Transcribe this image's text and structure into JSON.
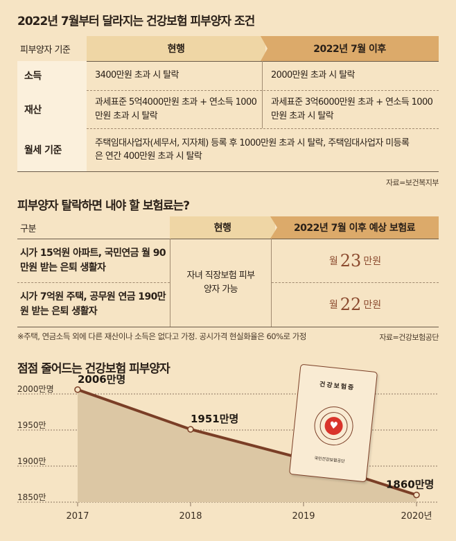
{
  "section1": {
    "title": "2022년 7월부터 달라지는 건강보험 피부양자 조건",
    "col_label": "피부양자 기준",
    "col_current": "현행",
    "col_after": "2022년 7월 이후",
    "rows": [
      {
        "label": "소득",
        "current": "3400만원 초과 시 탈락",
        "after": "2000만원 초과 시 탈락"
      },
      {
        "label": "재산",
        "current": "과세표준 5억4000만원 초과 + 연소득 1000만원 초과 시 탈락",
        "after": "과세표준 3억6000만원 초과 + 연소득 1000만원 초과 시 탈락"
      },
      {
        "label": "월세 기준",
        "merged": "주택임대사업자(세무서, 지자체) 등록 후 1000만원 초과 시 탈락, 주택임대사업자 미등록은 연간 400만원 초과 시 탈락"
      }
    ],
    "source": "자료=보건복지부"
  },
  "section2": {
    "title": "피부양자 탈락하면 내야 할 보험료는?",
    "col_label": "구분",
    "col_current": "현행",
    "col_after": "2022년 7월 이후 예상 보험료",
    "rows": [
      {
        "label": "시가 15억원 아파트, 국민연금 월 90만원 받는 은퇴 생활자",
        "prefix": "월",
        "amount": "23",
        "unit": "만원"
      },
      {
        "label": "시가 7억원 주택, 공무원 연금 190만원 받는 은퇴 생활자",
        "prefix": "월",
        "amount": "22",
        "unit": "만원"
      }
    ],
    "current_merged": "자녀 직장보험 피부양자 가능",
    "footnote": "※주택, 연금소득 외에 다른 재산이나 소득은 없다고 가정. 공시가격 현실화율은 60%로 가정",
    "source": "자료=건강보험공단"
  },
  "chart_data": {
    "type": "area",
    "title": "점점 줄어드는 건강보험 피부양자",
    "categories": [
      "2017",
      "2018",
      "2019",
      "2020년"
    ],
    "values": [
      2006,
      1951,
      1910,
      1860
    ],
    "data_labels": [
      "2006만명",
      "1951만명",
      "",
      "1860만명"
    ],
    "yticks": [
      {
        "v": 2000,
        "label": "2000만명"
      },
      {
        "v": 1950,
        "label": "1950만"
      },
      {
        "v": 1900,
        "label": "1900만"
      },
      {
        "v": 1850,
        "label": "1850만"
      }
    ],
    "ylim": [
      1850,
      2000
    ],
    "grid": true,
    "line_color": "#7a3e26",
    "fill_color": "#dcc7a4"
  },
  "card": {
    "title": "건강보험증",
    "issuer": "국민건강보험공단",
    "heart_color": "#d9342b"
  }
}
